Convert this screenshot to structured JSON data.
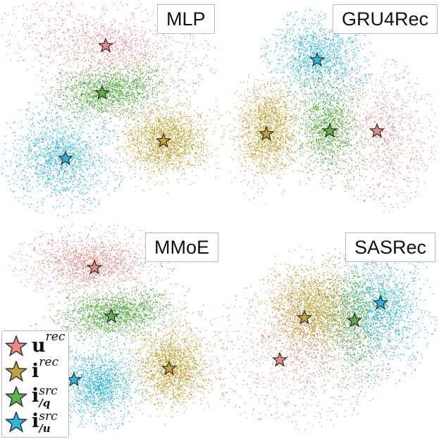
{
  "colors": {
    "user_rec": "#ea8a82",
    "item_rec": "#c4a43a",
    "item_src_q": "#5db24c",
    "item_src_u": "#2ab7e3",
    "star_stroke": "#333333"
  },
  "legend": [
    {
      "key": "user_rec",
      "base": "u",
      "sup": "rec",
      "sub": ""
    },
    {
      "key": "item_rec",
      "base": "i",
      "sup": "rec",
      "sub": ""
    },
    {
      "key": "item_src_q",
      "base": "i",
      "sup": "src",
      "sub": "/q"
    },
    {
      "key": "item_src_u",
      "base": "i",
      "sup": "src",
      "sub": "/u"
    }
  ],
  "chart_data": [
    {
      "type": "scatter",
      "title": "MLP",
      "clusters": [
        "user_rec",
        "item_src_q",
        "item_rec",
        "item_src_u"
      ]
    },
    {
      "type": "scatter",
      "title": "GRU4Rec",
      "clusters": [
        "item_src_u",
        "item_rec",
        "item_src_q",
        "user_rec"
      ]
    },
    {
      "type": "scatter",
      "title": "MMoE",
      "clusters": [
        "user_rec",
        "item_src_q",
        "item_src_u",
        "item_rec"
      ]
    },
    {
      "type": "scatter",
      "title": "SASRec",
      "clusters": [
        "item_rec",
        "item_src_q",
        "item_src_u",
        "user_rec"
      ]
    }
  ]
}
